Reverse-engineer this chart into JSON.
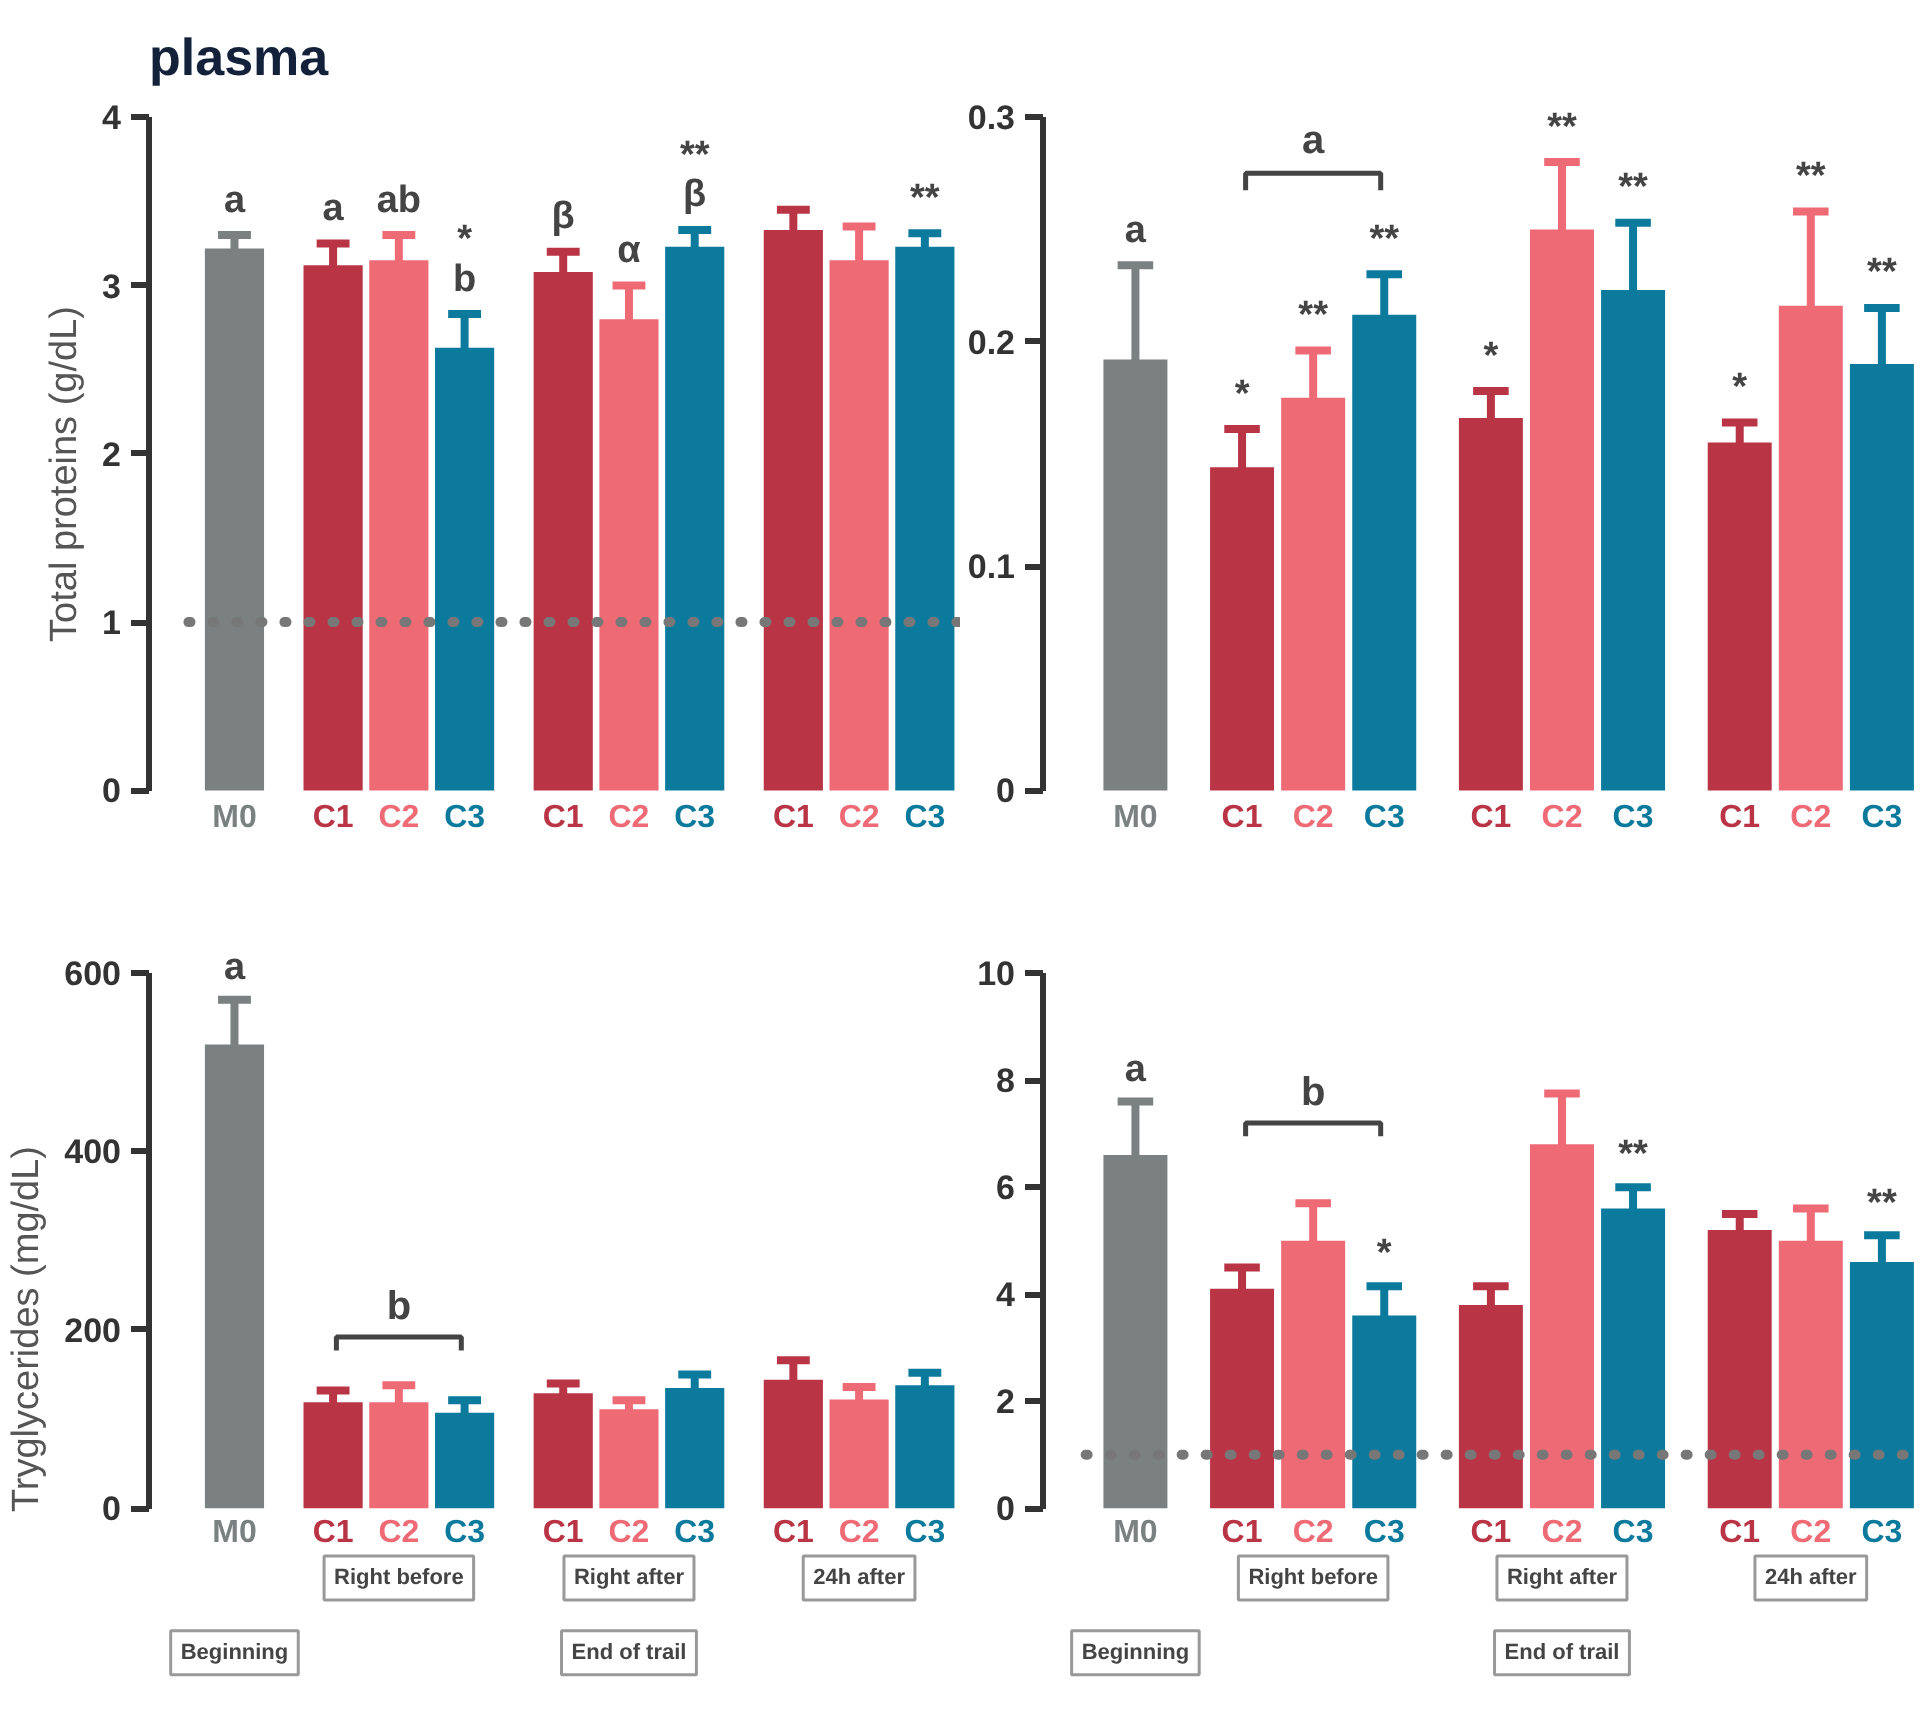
{
  "chart_data": [
    {
      "type": "bar",
      "title": "plasma",
      "ylabel": "Total proteins (g/dL)",
      "categories": [
        "M0",
        "C1",
        "C2",
        "C3",
        "C1",
        "C2",
        "C3",
        "C1",
        "C2",
        "C3"
      ],
      "values": [
        3.22,
        3.12,
        3.15,
        2.63,
        3.08,
        2.8,
        3.23,
        3.33,
        3.15,
        3.23
      ],
      "errors": [
        0.08,
        0.13,
        0.15,
        0.2,
        0.12,
        0.2,
        0.1,
        0.12,
        0.2,
        0.08
      ],
      "colors": [
        "#7b8081",
        "#b93545",
        "#ee6b76",
        "#0b7a9c",
        "#b93545",
        "#ee6b76",
        "#0b7a9c",
        "#b93545",
        "#ee6b76",
        "#0b7a9c"
      ],
      "value_labels": [
        "a",
        "a",
        "ab",
        "*\nb",
        "β",
        "α",
        "**\nβ",
        null,
        null,
        "**"
      ],
      "ylim": [
        0,
        4
      ],
      "yticks": [
        0,
        1,
        2,
        3,
        4
      ],
      "grid": false,
      "ref_lines": [
        {
          "axis": "y",
          "value": 1,
          "color": "#777777",
          "line_style": "dotted"
        }
      ]
    },
    {
      "type": "bar",
      "categories": [
        "M0",
        "C1",
        "C2",
        "C3",
        "C1",
        "C2",
        "C3",
        "C1",
        "C2",
        "C3"
      ],
      "values": [
        0.192,
        0.144,
        0.175,
        0.212,
        0.166,
        0.25,
        0.223,
        0.155,
        0.216,
        0.19
      ],
      "errors": [
        0.042,
        0.017,
        0.021,
        0.018,
        0.012,
        0.03,
        0.03,
        0.009,
        0.042,
        0.025
      ],
      "colors": [
        "#7b8081",
        "#b93545",
        "#ee6b76",
        "#0b7a9c",
        "#b93545",
        "#ee6b76",
        "#0b7a9c",
        "#b93545",
        "#ee6b76",
        "#0b7a9c"
      ],
      "value_labels": [
        "a",
        "*",
        "**",
        "**",
        "*",
        "**",
        "**",
        "*",
        "**",
        "**"
      ],
      "annotations": [
        "a"
      ],
      "ylim": [
        0,
        0.3
      ],
      "yticks": [
        0,
        0.1,
        0.2,
        0.3
      ],
      "grid": false
    },
    {
      "type": "bar",
      "ylabel": "Tryglycerides (mg/dL)",
      "categories": [
        "M0",
        "C1",
        "C2",
        "C3",
        "C1",
        "C2",
        "C3",
        "C1",
        "C2",
        "C3"
      ],
      "values": [
        520,
        119,
        119,
        107,
        129,
        111,
        135,
        144,
        122,
        138
      ],
      "errors": [
        50,
        13,
        19,
        14,
        11,
        10,
        15,
        22,
        14,
        14
      ],
      "colors": [
        "#7b8081",
        "#b93545",
        "#ee6b76",
        "#0b7a9c",
        "#b93545",
        "#ee6b76",
        "#0b7a9c",
        "#b93545",
        "#ee6b76",
        "#0b7a9c"
      ],
      "value_labels": [
        "a",
        null,
        null,
        null,
        null,
        null,
        null,
        null,
        null,
        null
      ],
      "annotations": [
        "b",
        "Right before",
        "Right after",
        "24h after",
        "Beginning",
        "End of trail"
      ],
      "ylim": [
        0,
        600
      ],
      "yticks": [
        0,
        200,
        400,
        600
      ],
      "grid": false
    },
    {
      "type": "bar",
      "categories": [
        "M0",
        "C1",
        "C2",
        "C3",
        "C1",
        "C2",
        "C3",
        "C1",
        "C2",
        "C3"
      ],
      "values": [
        6.6,
        4.1,
        5.0,
        3.6,
        3.8,
        6.8,
        5.6,
        5.2,
        5.0,
        4.6
      ],
      "errors": [
        1.0,
        0.4,
        0.7,
        0.55,
        0.35,
        0.95,
        0.4,
        0.3,
        0.6,
        0.5
      ],
      "colors": [
        "#7b8081",
        "#b93545",
        "#ee6b76",
        "#0b7a9c",
        "#b93545",
        "#ee6b76",
        "#0b7a9c",
        "#b93545",
        "#ee6b76",
        "#0b7a9c"
      ],
      "value_labels": [
        "a",
        null,
        null,
        "*",
        null,
        null,
        "**",
        null,
        null,
        "**"
      ],
      "annotations": [
        "b",
        "Right before",
        "Right after",
        "24h after",
        "Beginning",
        "End of trail"
      ],
      "ylim": [
        0,
        10
      ],
      "yticks": [
        0,
        2,
        4,
        6,
        8,
        10
      ],
      "grid": false,
      "ref_lines": [
        {
          "axis": "y",
          "value": 1,
          "color": "#777777",
          "line_style": "dotted"
        }
      ]
    }
  ]
}
